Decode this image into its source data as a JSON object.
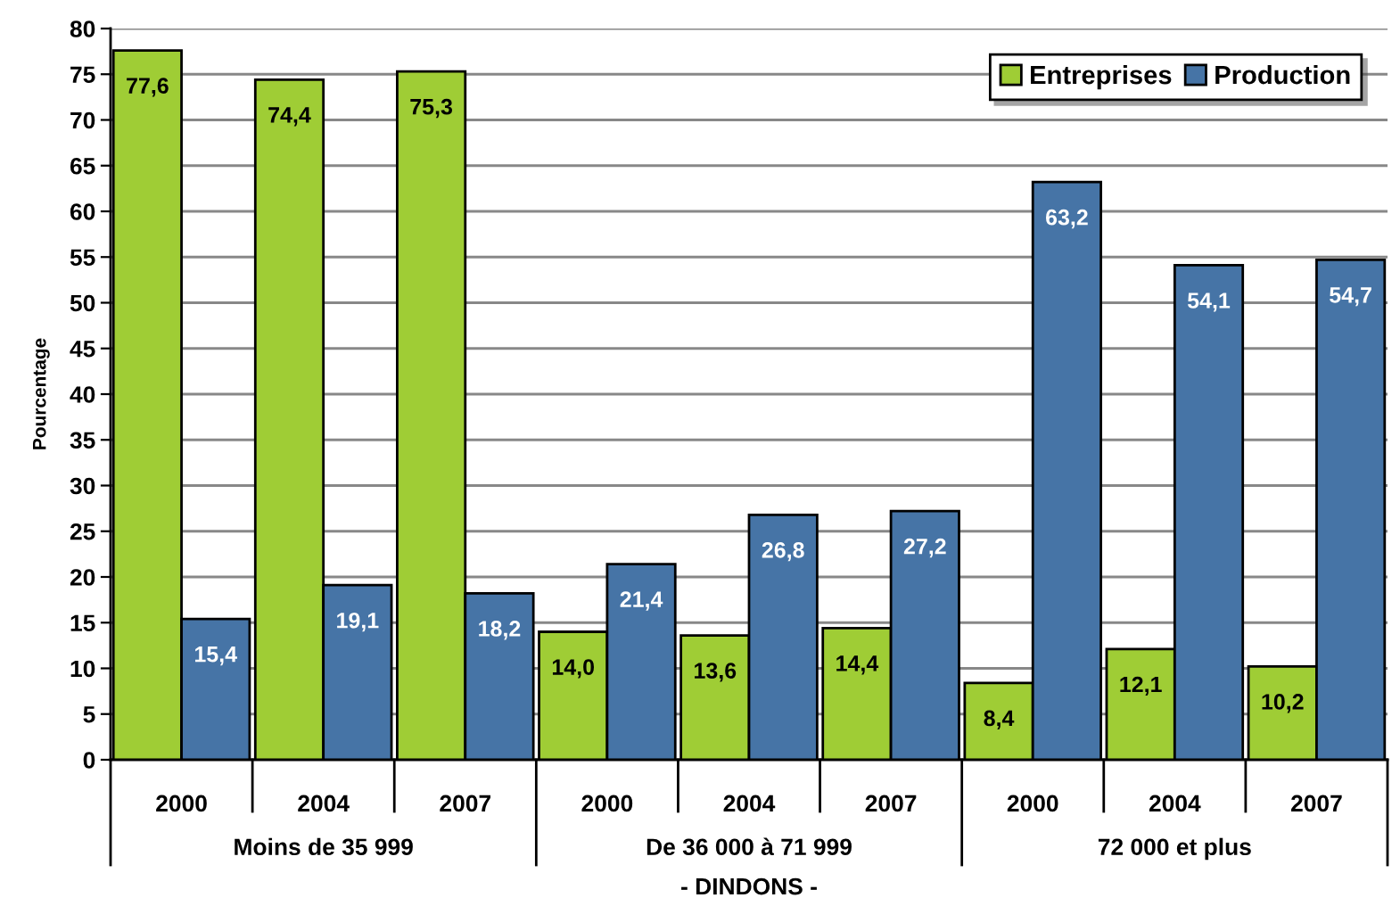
{
  "chart_data": {
    "type": "bar",
    "xlabel": "- DINDONS -",
    "ylabel": "Pourcentage",
    "categories": [
      "2000",
      "2004",
      "2007",
      "2000",
      "2004",
      "2007",
      "2000",
      "2004",
      "2007"
    ],
    "series": [
      {
        "name": "Entreprises",
        "color": "#9fcd35",
        "values": [
          77.6,
          74.4,
          75.3,
          14.0,
          13.6,
          14.4,
          8.4,
          12.1,
          10.2
        ],
        "value_labels": [
          "77,6",
          "74,4",
          "75,3",
          "14,0",
          "13,6",
          "14,4",
          "8,4",
          "12,1",
          "10,2"
        ]
      },
      {
        "name": "Production",
        "color": "#4674a6",
        "values": [
          15.4,
          19.1,
          18.2,
          21.4,
          26.8,
          27.2,
          63.2,
          54.1,
          54.7
        ],
        "value_labels": [
          "15,4",
          "19,1",
          "18,2",
          "21,4",
          "26,8",
          "27,2",
          "63,2",
          "54,1",
          "54,7"
        ]
      }
    ],
    "ylim": [
      0,
      80
    ],
    "yticks": [
      0,
      5,
      10,
      15,
      20,
      25,
      30,
      35,
      40,
      45,
      50,
      55,
      60,
      65,
      70,
      75,
      80
    ],
    "grid": "y",
    "legend": "top right",
    "annotations": [
      "Moins de 35 999",
      "De 36 000 à 71 999",
      "72 000 et plus"
    ]
  }
}
